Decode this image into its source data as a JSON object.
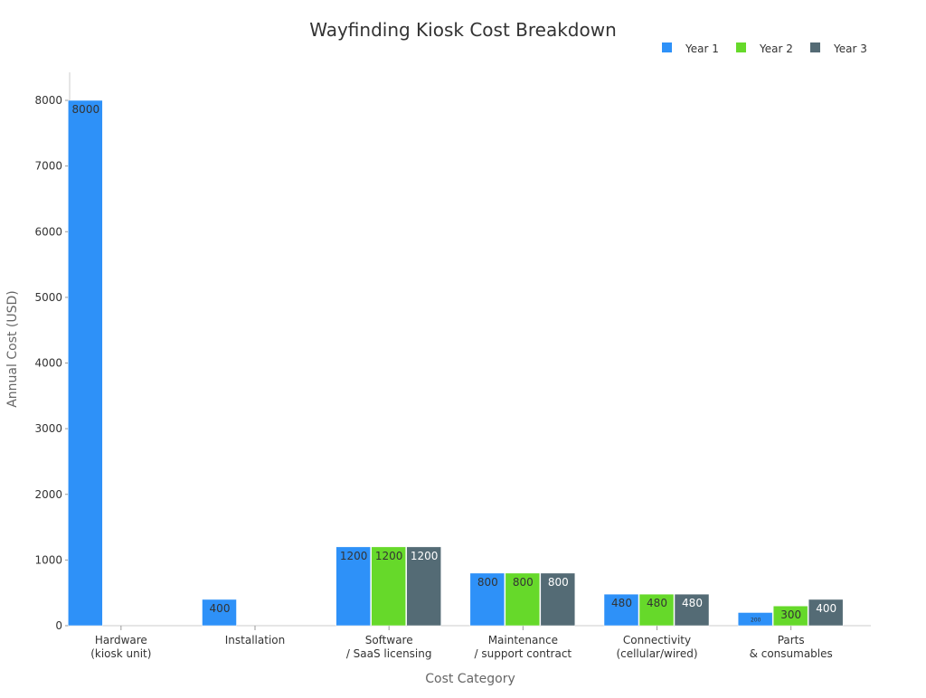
{
  "chart_data": {
    "type": "bar",
    "title": "Wayfinding Kiosk Cost Breakdown",
    "xlabel": "Cost Category",
    "ylabel": "Annual Cost (USD)",
    "ylim": [
      0,
      8000
    ],
    "yticks": [
      0,
      1000,
      2000,
      3000,
      4000,
      5000,
      6000,
      7000,
      8000
    ],
    "grid": false,
    "legend_position": "top-right",
    "categories": [
      [
        "Hardware",
        "(kiosk unit)"
      ],
      [
        "Installation"
      ],
      [
        "Software",
        "/ SaaS licensing"
      ],
      [
        "Maintenance",
        "/ support contract"
      ],
      [
        "Connectivity",
        "(cellular/wired)"
      ],
      [
        "Parts",
        "& consumables"
      ]
    ],
    "series": [
      {
        "name": "Year 1",
        "color": "#2e91f8",
        "label_color": "#333333",
        "values": [
          8000,
          400,
          1200,
          800,
          480,
          200
        ]
      },
      {
        "name": "Year 2",
        "color": "#66d92a",
        "label_color": "#333333",
        "values": [
          0,
          0,
          1200,
          800,
          480,
          300
        ]
      },
      {
        "name": "Year 3",
        "color": "#546b75",
        "label_color": "#ffffff",
        "values": [
          0,
          0,
          1200,
          800,
          480,
          400
        ]
      }
    ]
  }
}
